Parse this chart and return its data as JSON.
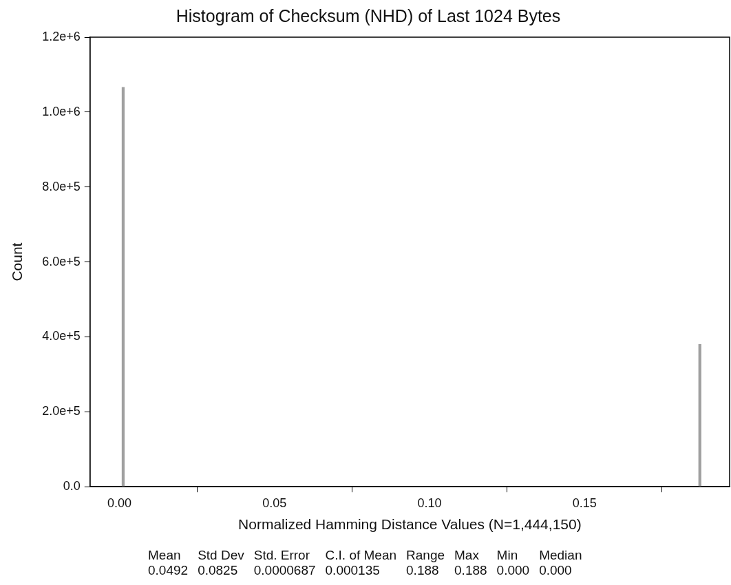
{
  "chart_data": {
    "type": "histogram",
    "title": "Histogram of Checksum (NHD) of Last 1024 Bytes",
    "xlabel": "Normalized Hamming Distance Values (N=1,444,150)",
    "ylabel": "Count",
    "bins": [
      0.0008,
      0.0016,
      0.1868,
      0.1876
    ],
    "values": [
      1066000,
      0,
      380000
    ],
    "color": "#a0a0a0",
    "xlim": [
      -0.0095,
      0.1968
    ],
    "xticks": [
      {
        "value": 0,
        "label": "0.00"
      },
      {
        "value": 0.05,
        "label": "0.05"
      },
      {
        "value": 0.1,
        "label": "0.10"
      },
      {
        "value": 0.15,
        "label": "0.15"
      }
    ],
    "ylim": [
      0,
      1200000
    ],
    "yticks": [
      {
        "value": 0,
        "label": "0.0"
      },
      {
        "value": 200000,
        "label": "2.0e+5"
      },
      {
        "value": 400000,
        "label": "4.0e+5"
      },
      {
        "value": 600000,
        "label": "6.0e+5"
      },
      {
        "value": 800000,
        "label": "8.0e+5"
      },
      {
        "value": 1000000,
        "label": "1.0e+6"
      },
      {
        "value": 1200000,
        "label": "1.2e+6"
      }
    ],
    "grid": false,
    "legend": false,
    "annotations": [
      "Mean\n0.0492",
      "Std Dev\n0.0825",
      "Std. Error\n0.0000687",
      "C.I. of Mean\n0.000135",
      "Range\n0.188",
      "Max\n0.188",
      "Min\n0.000",
      "Median\n0.000"
    ]
  }
}
